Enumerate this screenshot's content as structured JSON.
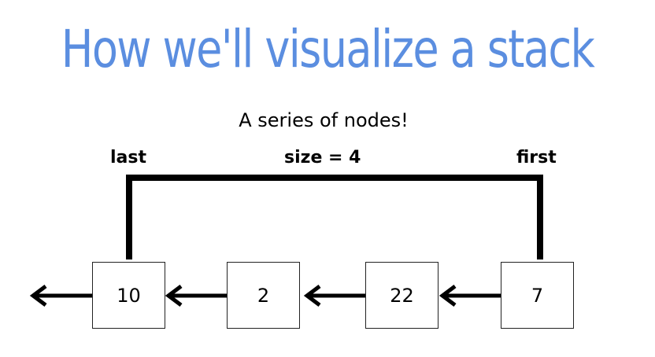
{
  "slide": {
    "title": "How we'll visualize a stack",
    "subtitle": "A series of nodes!",
    "title_color": "#5b8ee0"
  },
  "diagram": {
    "labels": {
      "last": "last",
      "size": "size = 4",
      "first": "first"
    },
    "nodes": [
      {
        "value": "10"
      },
      {
        "value": "2"
      },
      {
        "value": "22"
      },
      {
        "value": "7"
      }
    ],
    "line_color": "#000000"
  }
}
